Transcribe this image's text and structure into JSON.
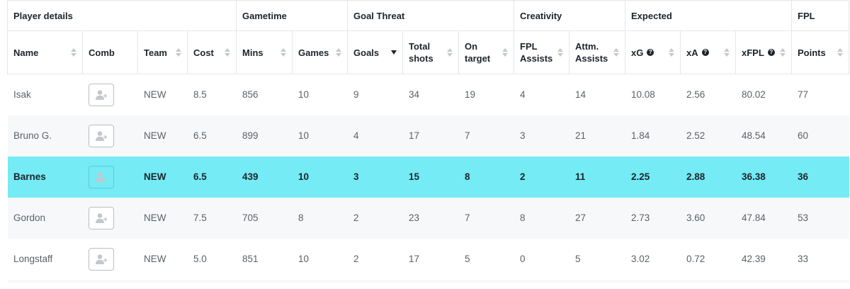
{
  "groups": [
    {
      "key": "player_details",
      "label": "Player details"
    },
    {
      "key": "gametime",
      "label": "Gametime"
    },
    {
      "key": "goal_threat",
      "label": "Goal Threat"
    },
    {
      "key": "creativity",
      "label": "Creativity"
    },
    {
      "key": "expected",
      "label": "Expected"
    },
    {
      "key": "fpl",
      "label": "FPL"
    }
  ],
  "columns": {
    "name": "Name",
    "comb": "Comb",
    "team": "Team",
    "cost": "Cost",
    "mins": "Mins",
    "games": "Games",
    "goals": "Goals",
    "total_shots": "Total shots",
    "on_target": "On target",
    "fpl_assists": "FPL Assists",
    "attm_assists": "Attm. Assists",
    "xg": "xG",
    "xa": "xA",
    "xfpl": "xFPL",
    "points": "Points"
  },
  "sort": {
    "column": "goals",
    "direction": "desc"
  },
  "icons": {
    "help": "question-circle-icon",
    "add_user": "add-user-icon",
    "sort": "sort-arrows-icon"
  },
  "colors": {
    "highlight_row": "#74ebf5",
    "border": "#e3e6ea",
    "alt_row": "#f7f8f9"
  },
  "rows": [
    {
      "name": "Isak",
      "team": "NEW",
      "cost": "8.5",
      "mins": "856",
      "games": "10",
      "goals": "9",
      "total_shots": "34",
      "on_target": "19",
      "fpl_assists": "4",
      "attm_assists": "14",
      "xg": "10.08",
      "xa": "2.56",
      "xfpl": "80.02",
      "points": "77",
      "highlight": false
    },
    {
      "name": "Bruno G.",
      "team": "NEW",
      "cost": "6.5",
      "mins": "899",
      "games": "10",
      "goals": "4",
      "total_shots": "17",
      "on_target": "7",
      "fpl_assists": "3",
      "attm_assists": "21",
      "xg": "1.84",
      "xa": "2.52",
      "xfpl": "48.54",
      "points": "60",
      "highlight": false
    },
    {
      "name": "Barnes",
      "team": "NEW",
      "cost": "6.5",
      "mins": "439",
      "games": "10",
      "goals": "3",
      "total_shots": "15",
      "on_target": "8",
      "fpl_assists": "2",
      "attm_assists": "11",
      "xg": "2.25",
      "xa": "2.88",
      "xfpl": "36.38",
      "points": "36",
      "highlight": true
    },
    {
      "name": "Gordon",
      "team": "NEW",
      "cost": "7.5",
      "mins": "705",
      "games": "8",
      "goals": "2",
      "total_shots": "23",
      "on_target": "7",
      "fpl_assists": "8",
      "attm_assists": "27",
      "xg": "2.73",
      "xa": "3.60",
      "xfpl": "47.84",
      "points": "53",
      "highlight": false
    },
    {
      "name": "Longstaff",
      "team": "NEW",
      "cost": "5.0",
      "mins": "851",
      "games": "10",
      "goals": "2",
      "total_shots": "17",
      "on_target": "5",
      "fpl_assists": "0",
      "attm_assists": "5",
      "xg": "3.02",
      "xa": "0.72",
      "xfpl": "42.39",
      "points": "33",
      "highlight": false
    }
  ]
}
